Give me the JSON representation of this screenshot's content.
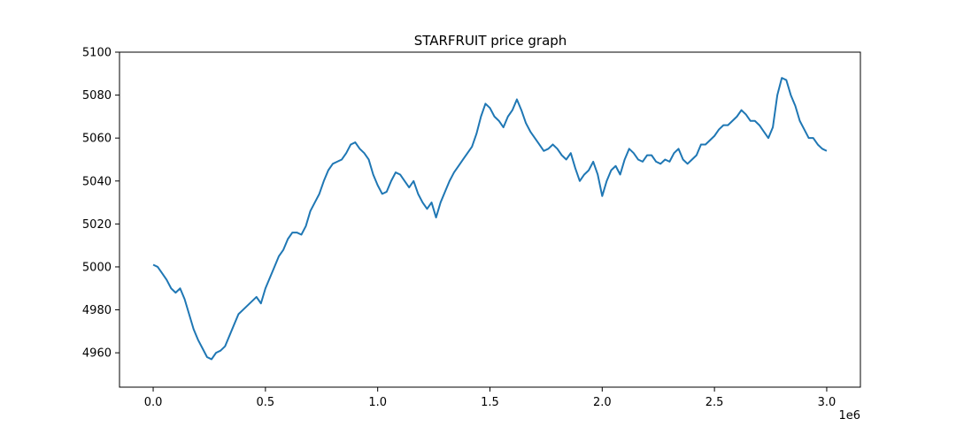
{
  "chart_data": {
    "type": "line",
    "title": "STARFRUIT price graph",
    "xlabel": "",
    "ylabel": "",
    "x_offset_label": "1e6",
    "xlim": [
      -150000,
      3150000
    ],
    "ylim": [
      4944,
      5100
    ],
    "x_ticks": [
      0,
      500000,
      1000000,
      1500000,
      2000000,
      2500000,
      3000000
    ],
    "x_tick_labels": [
      "0.0",
      "0.5",
      "1.0",
      "1.5",
      "2.0",
      "2.5",
      "3.0"
    ],
    "y_ticks": [
      4960,
      4980,
      5000,
      5020,
      5040,
      5060,
      5080,
      5100
    ],
    "y_tick_labels": [
      "4960",
      "4980",
      "5000",
      "5020",
      "5040",
      "5060",
      "5080",
      "5100"
    ],
    "grid": false,
    "line_color": "#1f77b4",
    "series": [
      {
        "x": [
          0,
          20000,
          40000,
          60000,
          80000,
          100000,
          120000,
          140000,
          160000,
          180000,
          200000,
          220000,
          240000,
          260000,
          280000,
          300000,
          320000,
          340000,
          360000,
          380000,
          400000,
          420000,
          440000,
          460000,
          480000,
          500000,
          520000,
          540000,
          560000,
          580000,
          600000,
          620000,
          640000,
          660000,
          680000,
          700000,
          720000,
          740000,
          760000,
          780000,
          800000,
          820000,
          840000,
          860000,
          880000,
          900000,
          920000,
          940000,
          960000,
          980000,
          1000000,
          1020000,
          1040000,
          1060000,
          1080000,
          1100000,
          1120000,
          1140000,
          1160000,
          1180000,
          1200000,
          1220000,
          1240000,
          1260000,
          1280000,
          1300000,
          1320000,
          1340000,
          1360000,
          1380000,
          1400000,
          1420000,
          1440000,
          1460000,
          1480000,
          1500000,
          1520000,
          1540000,
          1560000,
          1580000,
          1600000,
          1620000,
          1640000,
          1660000,
          1680000,
          1700000,
          1720000,
          1740000,
          1760000,
          1780000,
          1800000,
          1820000,
          1840000,
          1860000,
          1880000,
          1900000,
          1920000,
          1940000,
          1960000,
          1980000,
          2000000,
          2020000,
          2040000,
          2060000,
          2080000,
          2100000,
          2120000,
          2140000,
          2160000,
          2180000,
          2200000,
          2220000,
          2240000,
          2260000,
          2280000,
          2300000,
          2320000,
          2340000,
          2360000,
          2380000,
          2400000,
          2420000,
          2440000,
          2460000,
          2480000,
          2500000,
          2520000,
          2540000,
          2560000,
          2580000,
          2600000,
          2620000,
          2640000,
          2660000,
          2680000,
          2700000,
          2720000,
          2740000,
          2760000,
          2780000,
          2800000,
          2820000,
          2840000,
          2860000,
          2880000,
          2900000,
          2920000,
          2940000,
          2960000,
          2980000,
          3000000
        ],
        "y": [
          5001,
          5000,
          4997,
          4994,
          4990,
          4988,
          4990,
          4985,
          4978,
          4971,
          4966,
          4962,
          4958,
          4957,
          4960,
          4961,
          4963,
          4968,
          4973,
          4978,
          4980,
          4982,
          4984,
          4986,
          4983,
          4990,
          4995,
          5000,
          5005,
          5008,
          5013,
          5016,
          5016,
          5015,
          5019,
          5026,
          5030,
          5034,
          5040,
          5045,
          5048,
          5049,
          5050,
          5053,
          5057,
          5058,
          5055,
          5053,
          5050,
          5043,
          5038,
          5034,
          5035,
          5040,
          5044,
          5043,
          5040,
          5037,
          5040,
          5034,
          5030,
          5027,
          5030,
          5023,
          5030,
          5035,
          5040,
          5044,
          5047,
          5050,
          5053,
          5056,
          5062,
          5070,
          5076,
          5074,
          5070,
          5068,
          5065,
          5070,
          5073,
          5078,
          5073,
          5067,
          5063,
          5060,
          5057,
          5054,
          5055,
          5057,
          5055,
          5052,
          5050,
          5053,
          5046,
          5040,
          5043,
          5045,
          5049,
          5043,
          5033,
          5040,
          5045,
          5047,
          5043,
          5050,
          5055,
          5053,
          5050,
          5049,
          5052,
          5052,
          5049,
          5048,
          5050,
          5049,
          5053,
          5055,
          5050,
          5048,
          5050,
          5052,
          5057,
          5057,
          5059,
          5061,
          5064,
          5066,
          5066,
          5068,
          5070,
          5073,
          5071,
          5068,
          5068,
          5066,
          5063,
          5060,
          5065,
          5080,
          5088,
          5087,
          5080,
          5075,
          5068,
          5064,
          5060,
          5060,
          5057,
          5055,
          5054
        ]
      }
    ]
  }
}
